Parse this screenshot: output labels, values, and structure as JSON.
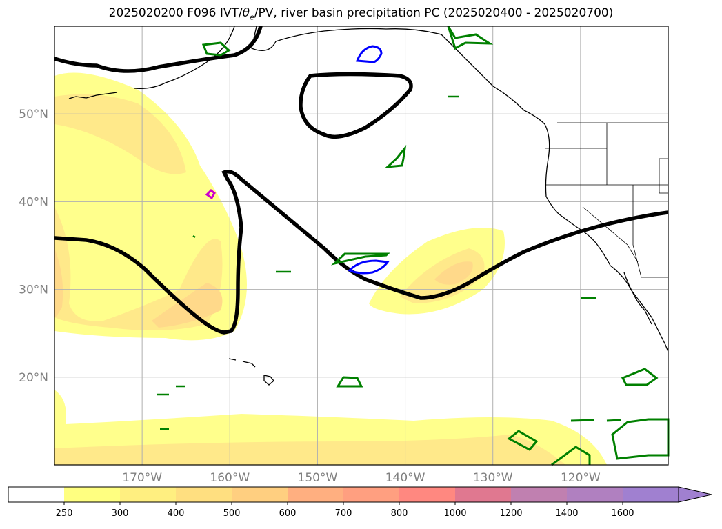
{
  "title": "2025020200 F096 IVT/θₑ/PV, river basin precipitation PC (2025020400 - 2025020700)",
  "title_parts": {
    "prefix": "2025020200 F096 IVT/",
    "theta": "θ",
    "theta_sub": "e",
    "suffix": "/PV, river basin precipitation PC (2025020400 - 2025020700)"
  },
  "map": {
    "projection": "PlateCarree",
    "lon_range": [
      -180,
      -110
    ],
    "lat_range": [
      10,
      60
    ],
    "grid": true,
    "lat_ticks": [
      "50°N",
      "40°N",
      "30°N",
      "20°N"
    ],
    "lat_tick_values": [
      50,
      40,
      30,
      20
    ],
    "lon_ticks": [
      "170°W",
      "160°W",
      "150°W",
      "140°W",
      "130°W",
      "120°W"
    ],
    "lon_tick_values": [
      -170,
      -160,
      -150,
      -140,
      -130,
      -120
    ]
  },
  "colorbar": {
    "labels": [
      "250",
      "300",
      "400",
      "500",
      "600",
      "700",
      "800",
      "1000",
      "1200",
      "1400",
      "1600"
    ],
    "colors": [
      "#ffffff",
      "#ffff80",
      "#ffef80",
      "#ffdf80",
      "#ffcf80",
      "#ffaf80",
      "#ff9f80",
      "#ff8880",
      "#e07890",
      "#c080b0",
      "#b080c0",
      "#a080d0"
    ],
    "extend": "max"
  },
  "legend_colors": {
    "theta_contour": "#000000",
    "pv_high": "#0000ff",
    "pv_magenta": "#cc00cc",
    "precip": "#008000",
    "coastline": "#000000"
  }
}
